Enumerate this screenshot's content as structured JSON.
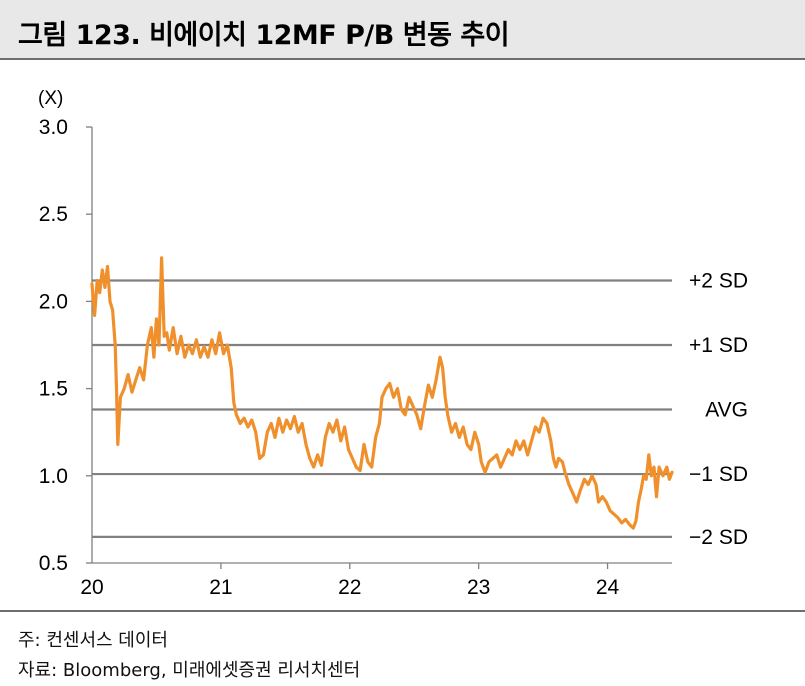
{
  "title": "그림 123. 비에이치 12MF P/B 변동 추이",
  "footnote": "주: 컨센서스 데이터",
  "source": "자료: Bloomberg, 미래에셋증권 리서치센터",
  "colors": {
    "series": "#f0902c",
    "band": "#808080",
    "axis": "#808080",
    "title_bg": "#e8e8e8"
  },
  "chart_data": {
    "type": "line",
    "yunit": "(X)",
    "ylim": [
      0.5,
      3.0
    ],
    "yticks": [
      "3.0",
      "2.5",
      "2.0",
      "1.5",
      "1.0",
      "0.5"
    ],
    "xlim": [
      2020.0,
      2024.5
    ],
    "xticks": [
      {
        "value": 2020,
        "label": "20"
      },
      {
        "value": 2021,
        "label": "21"
      },
      {
        "value": 2022,
        "label": "22"
      },
      {
        "value": 2023,
        "label": "23"
      },
      {
        "value": 2024,
        "label": "24"
      }
    ],
    "bands": [
      {
        "label": "+2 SD",
        "value": 2.12
      },
      {
        "label": "+1 SD",
        "value": 1.75
      },
      {
        "label": "AVG",
        "value": 1.38
      },
      {
        "label": "−1 SD",
        "value": 1.01
      },
      {
        "label": "−2 SD",
        "value": 0.65
      }
    ],
    "grid": false,
    "series": [
      {
        "values": [
          [
            2020.0,
            2.1
          ],
          [
            2020.02,
            1.92
          ],
          [
            2020.04,
            2.12
          ],
          [
            2020.06,
            2.05
          ],
          [
            2020.08,
            2.18
          ],
          [
            2020.1,
            2.08
          ],
          [
            2020.12,
            2.2
          ],
          [
            2020.14,
            2.0
          ],
          [
            2020.16,
            1.95
          ],
          [
            2020.18,
            1.75
          ],
          [
            2020.19,
            1.5
          ],
          [
            2020.2,
            1.18
          ],
          [
            2020.22,
            1.45
          ],
          [
            2020.25,
            1.5
          ],
          [
            2020.28,
            1.58
          ],
          [
            2020.31,
            1.48
          ],
          [
            2020.34,
            1.55
          ],
          [
            2020.37,
            1.62
          ],
          [
            2020.4,
            1.55
          ],
          [
            2020.43,
            1.75
          ],
          [
            2020.46,
            1.85
          ],
          [
            2020.48,
            1.68
          ],
          [
            2020.5,
            1.9
          ],
          [
            2020.52,
            1.75
          ],
          [
            2020.54,
            2.25
          ],
          [
            2020.56,
            1.8
          ],
          [
            2020.58,
            1.82
          ],
          [
            2020.6,
            1.72
          ],
          [
            2020.63,
            1.85
          ],
          [
            2020.66,
            1.7
          ],
          [
            2020.69,
            1.8
          ],
          [
            2020.72,
            1.68
          ],
          [
            2020.75,
            1.75
          ],
          [
            2020.78,
            1.7
          ],
          [
            2020.81,
            1.78
          ],
          [
            2020.84,
            1.68
          ],
          [
            2020.87,
            1.74
          ],
          [
            2020.9,
            1.68
          ],
          [
            2020.93,
            1.78
          ],
          [
            2020.96,
            1.7
          ],
          [
            2020.99,
            1.82
          ],
          [
            2021.02,
            1.7
          ],
          [
            2021.05,
            1.75
          ],
          [
            2021.08,
            1.62
          ],
          [
            2021.1,
            1.42
          ],
          [
            2021.12,
            1.35
          ],
          [
            2021.15,
            1.3
          ],
          [
            2021.18,
            1.33
          ],
          [
            2021.21,
            1.28
          ],
          [
            2021.24,
            1.32
          ],
          [
            2021.27,
            1.25
          ],
          [
            2021.3,
            1.1
          ],
          [
            2021.33,
            1.12
          ],
          [
            2021.36,
            1.25
          ],
          [
            2021.39,
            1.3
          ],
          [
            2021.42,
            1.22
          ],
          [
            2021.45,
            1.33
          ],
          [
            2021.48,
            1.25
          ],
          [
            2021.51,
            1.32
          ],
          [
            2021.54,
            1.27
          ],
          [
            2021.57,
            1.34
          ],
          [
            2021.6,
            1.25
          ],
          [
            2021.63,
            1.3
          ],
          [
            2021.66,
            1.18
          ],
          [
            2021.69,
            1.1
          ],
          [
            2021.72,
            1.05
          ],
          [
            2021.75,
            1.12
          ],
          [
            2021.78,
            1.06
          ],
          [
            2021.81,
            1.22
          ],
          [
            2021.84,
            1.3
          ],
          [
            2021.87,
            1.25
          ],
          [
            2021.9,
            1.32
          ],
          [
            2021.93,
            1.2
          ],
          [
            2021.96,
            1.28
          ],
          [
            2021.99,
            1.15
          ],
          [
            2022.02,
            1.1
          ],
          [
            2022.05,
            1.05
          ],
          [
            2022.08,
            1.03
          ],
          [
            2022.11,
            1.18
          ],
          [
            2022.14,
            1.08
          ],
          [
            2022.17,
            1.05
          ],
          [
            2022.2,
            1.22
          ],
          [
            2022.23,
            1.3
          ],
          [
            2022.25,
            1.45
          ],
          [
            2022.28,
            1.5
          ],
          [
            2022.31,
            1.53
          ],
          [
            2022.34,
            1.45
          ],
          [
            2022.37,
            1.5
          ],
          [
            2022.4,
            1.38
          ],
          [
            2022.43,
            1.35
          ],
          [
            2022.46,
            1.45
          ],
          [
            2022.49,
            1.4
          ],
          [
            2022.52,
            1.35
          ],
          [
            2022.55,
            1.27
          ],
          [
            2022.58,
            1.4
          ],
          [
            2022.61,
            1.52
          ],
          [
            2022.64,
            1.45
          ],
          [
            2022.67,
            1.55
          ],
          [
            2022.7,
            1.68
          ],
          [
            2022.72,
            1.62
          ],
          [
            2022.74,
            1.45
          ],
          [
            2022.76,
            1.35
          ],
          [
            2022.79,
            1.25
          ],
          [
            2022.82,
            1.3
          ],
          [
            2022.85,
            1.22
          ],
          [
            2022.88,
            1.28
          ],
          [
            2022.91,
            1.18
          ],
          [
            2022.94,
            1.15
          ],
          [
            2022.97,
            1.25
          ],
          [
            2023.0,
            1.18
          ],
          [
            2023.02,
            1.08
          ],
          [
            2023.05,
            1.02
          ],
          [
            2023.08,
            1.08
          ],
          [
            2023.11,
            1.1
          ],
          [
            2023.14,
            1.12
          ],
          [
            2023.17,
            1.05
          ],
          [
            2023.2,
            1.1
          ],
          [
            2023.23,
            1.15
          ],
          [
            2023.26,
            1.12
          ],
          [
            2023.29,
            1.2
          ],
          [
            2023.32,
            1.15
          ],
          [
            2023.35,
            1.2
          ],
          [
            2023.38,
            1.12
          ],
          [
            2023.41,
            1.2
          ],
          [
            2023.44,
            1.28
          ],
          [
            2023.47,
            1.25
          ],
          [
            2023.5,
            1.33
          ],
          [
            2023.53,
            1.3
          ],
          [
            2023.56,
            1.2
          ],
          [
            2023.58,
            1.1
          ],
          [
            2023.6,
            1.05
          ],
          [
            2023.62,
            1.1
          ],
          [
            2023.65,
            1.08
          ],
          [
            2023.67,
            1.02
          ],
          [
            2023.7,
            0.95
          ],
          [
            2023.73,
            0.9
          ],
          [
            2023.76,
            0.85
          ],
          [
            2023.79,
            0.92
          ],
          [
            2023.82,
            0.98
          ],
          [
            2023.85,
            0.95
          ],
          [
            2023.88,
            1.0
          ],
          [
            2023.91,
            0.95
          ],
          [
            2023.93,
            0.85
          ],
          [
            2023.96,
            0.88
          ],
          [
            2023.99,
            0.85
          ],
          [
            2024.02,
            0.8
          ],
          [
            2024.05,
            0.78
          ],
          [
            2024.08,
            0.76
          ],
          [
            2024.11,
            0.73
          ],
          [
            2024.14,
            0.75
          ],
          [
            2024.17,
            0.72
          ],
          [
            2024.2,
            0.7
          ],
          [
            2024.22,
            0.74
          ],
          [
            2024.24,
            0.85
          ],
          [
            2024.26,
            0.92
          ],
          [
            2024.28,
            1.0
          ],
          [
            2024.3,
            0.98
          ],
          [
            2024.32,
            1.12
          ],
          [
            2024.34,
            1.0
          ],
          [
            2024.36,
            1.05
          ],
          [
            2024.38,
            0.88
          ],
          [
            2024.4,
            1.05
          ],
          [
            2024.43,
            1.0
          ],
          [
            2024.46,
            1.05
          ],
          [
            2024.48,
            0.98
          ],
          [
            2024.5,
            1.02
          ]
        ]
      }
    ]
  }
}
